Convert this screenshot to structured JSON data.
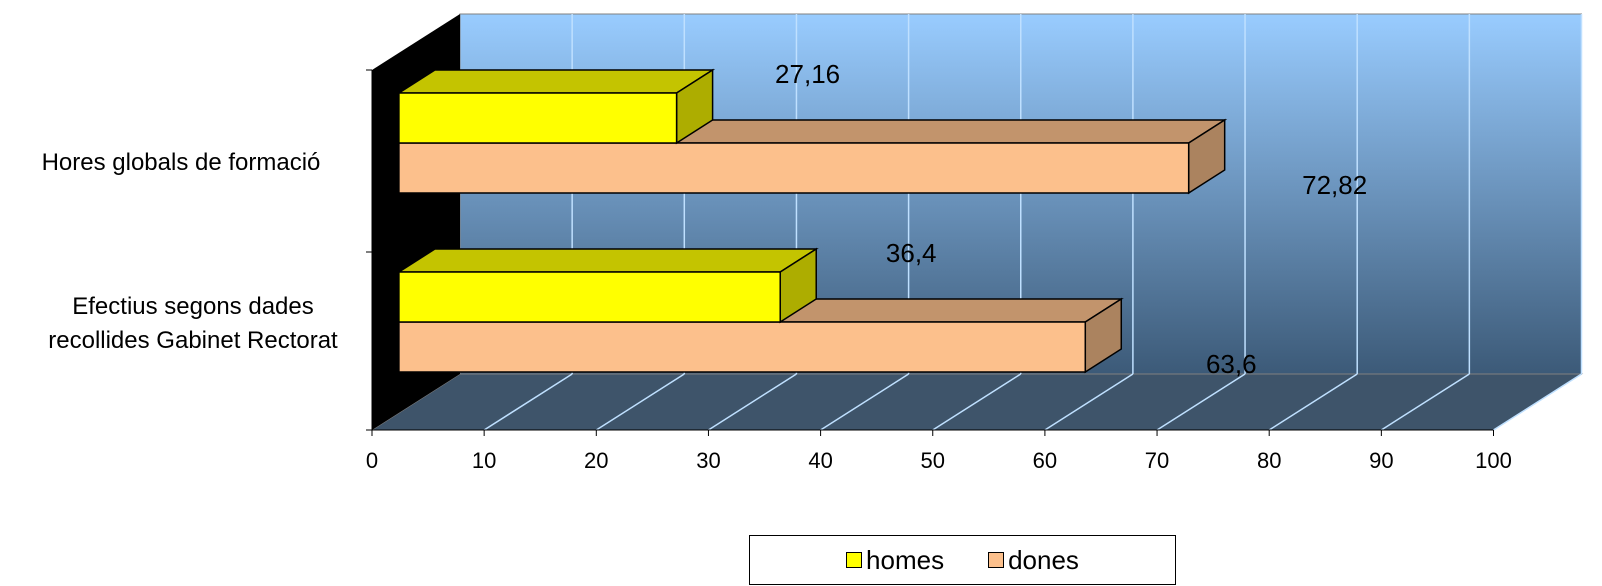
{
  "chart_data": {
    "type": "bar",
    "orientation": "horizontal",
    "style": "3d-clustered",
    "categories": [
      "Hores globals de formació",
      "Efectius segons dades recollides Gabinet Rectorat"
    ],
    "series": [
      {
        "name": "homes",
        "values": [
          27.16,
          36.4
        ],
        "labels": [
          "27,16",
          "36,4"
        ],
        "color": "#FFFF00"
      },
      {
        "name": "dones",
        "values": [
          72.82,
          63.6
        ],
        "labels": [
          "72,82",
          "63,6"
        ],
        "color": "#FCC08C"
      }
    ],
    "xlim": [
      0,
      100
    ],
    "xticks": [
      "0",
      "10",
      "20",
      "30",
      "40",
      "50",
      "60",
      "70",
      "80",
      "90",
      "100"
    ],
    "grid": true,
    "legend_position": "bottom",
    "colors": {
      "wall_top": "#99CCFF",
      "wall_bottom": "#3C5A78",
      "floor": "#3E546A",
      "side_wall": "#000000"
    }
  }
}
